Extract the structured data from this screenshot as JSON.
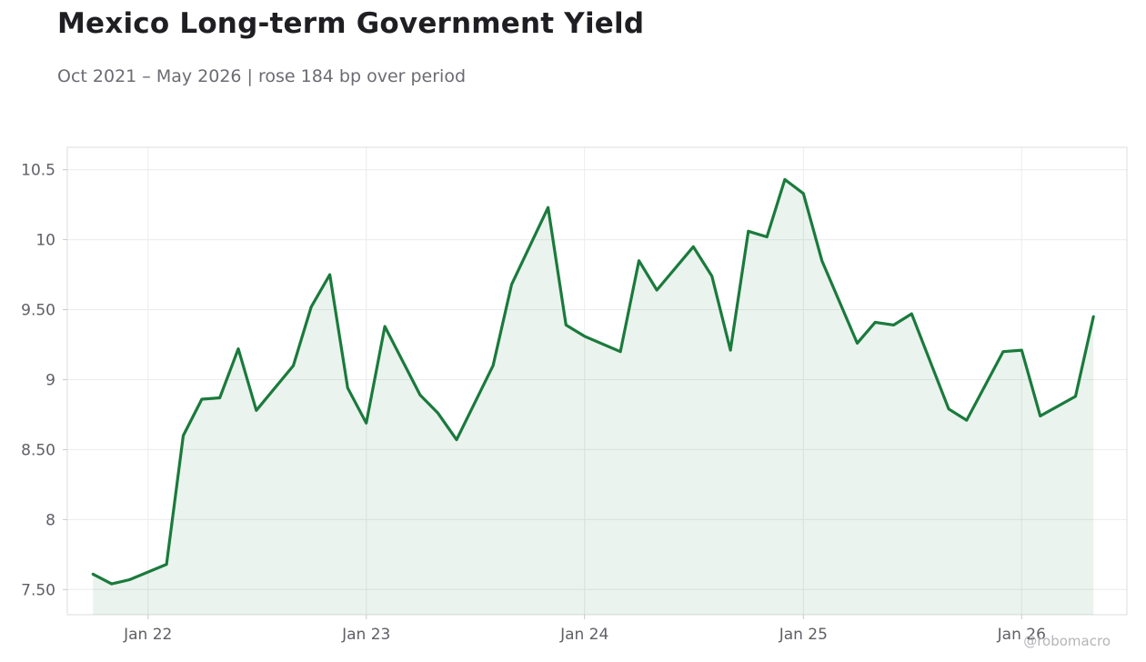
{
  "title": "Mexico Long-term Government Yield",
  "subtitle": "Oct 2021 – May 2026 | rose 184 bp over period",
  "watermark": "@robomacro",
  "colors": {
    "line": "#1a7a3c",
    "fill": "#1a7a3c",
    "grid": "#ececec",
    "frame": "#dddddd"
  },
  "chart_data": {
    "type": "area",
    "title": "Mexico Long-term Government Yield",
    "subtitle": "Oct 2021 – May 2026 | rose 184 bp over period",
    "xlabel": "",
    "ylabel": "",
    "ylim": [
      7.32,
      10.66
    ],
    "xlim": [
      "2021-08-19",
      "2026-06-26"
    ],
    "grid": true,
    "legend": "none",
    "yticks": [
      {
        "value": 7.5,
        "label": "7.50"
      },
      {
        "value": 8,
        "label": "8"
      },
      {
        "value": 8.5,
        "label": "8.50"
      },
      {
        "value": 9,
        "label": "9"
      },
      {
        "value": 9.5,
        "label": "9.50"
      },
      {
        "value": 10,
        "label": "10"
      },
      {
        "value": 10.5,
        "label": "10.5"
      }
    ],
    "xticks": [
      {
        "value": "2022-01-01",
        "label": "Jan 22"
      },
      {
        "value": "2023-01-01",
        "label": "Jan 23"
      },
      {
        "value": "2024-01-01",
        "label": "Jan 24"
      },
      {
        "value": "2025-01-01",
        "label": "Jan 25"
      },
      {
        "value": "2026-01-01",
        "label": "Jan 26"
      }
    ],
    "series": [
      {
        "x": [
          "2021-10-01",
          "2021-11-01",
          "2021-12-01",
          "2022-02-01",
          "2022-03-01",
          "2022-04-01",
          "2022-05-01",
          "2022-06-01",
          "2022-07-01",
          "2022-09-01",
          "2022-10-01",
          "2022-11-01",
          "2022-12-01",
          "2023-01-01",
          "2023-02-01",
          "2023-04-01",
          "2023-05-01",
          "2023-06-01",
          "2023-08-01",
          "2023-09-01",
          "2023-11-01",
          "2023-12-01",
          "2024-01-01",
          "2024-03-01",
          "2024-04-01",
          "2024-05-01",
          "2024-07-01",
          "2024-08-01",
          "2024-09-01",
          "2024-10-01",
          "2024-11-01",
          "2024-12-01",
          "2025-01-01",
          "2025-02-01",
          "2025-04-01",
          "2025-05-01",
          "2025-06-01",
          "2025-07-01",
          "2025-09-01",
          "2025-10-01",
          "2025-12-01",
          "2026-01-01",
          "2026-02-01",
          "2026-04-01",
          "2026-05-01"
        ],
        "values": [
          7.61,
          7.54,
          7.57,
          7.68,
          8.6,
          8.86,
          8.87,
          9.22,
          8.78,
          9.1,
          9.52,
          9.75,
          8.94,
          8.69,
          9.38,
          8.89,
          8.76,
          8.57,
          9.1,
          9.68,
          10.23,
          9.39,
          9.31,
          9.2,
          9.85,
          9.64,
          9.95,
          9.74,
          9.21,
          10.06,
          10.02,
          10.43,
          10.33,
          9.85,
          9.26,
          9.41,
          9.39,
          9.47,
          8.79,
          8.71,
          9.2,
          9.21,
          8.74,
          8.88,
          9.45
        ]
      }
    ]
  }
}
